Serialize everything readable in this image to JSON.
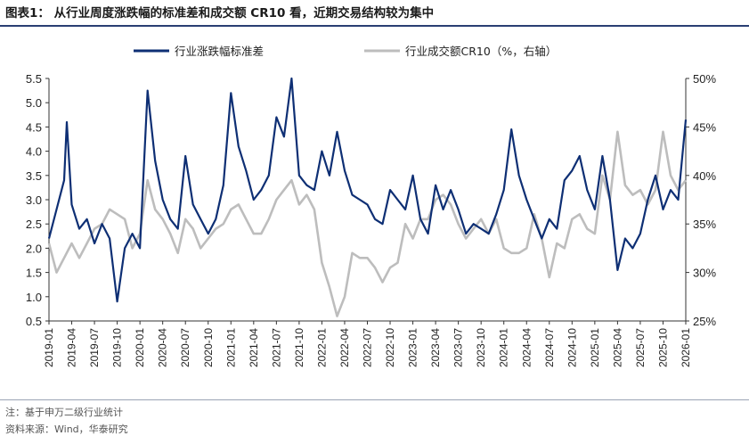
{
  "title": "图表1：  从行业周度涨跌幅的标准差和成交额 CR10 看，近期交易结构较为集中",
  "footer": {
    "note": "注：基于申万二级行业统计",
    "source": "资料来源：Wind，华泰研究"
  },
  "colors": {
    "series1": "#0e2f74",
    "series2": "#bdbdbd",
    "axis": "#333333",
    "rule": "#2a3f73"
  },
  "chart_data": {
    "type": "line",
    "title": "",
    "xlabel": "",
    "ylabel": "",
    "legend_position": "top-center",
    "grid": false,
    "x_ticks": [
      "2019-01",
      "2019-04",
      "2019-07",
      "2019-10",
      "2020-01",
      "2020-04",
      "2020-07",
      "2020-10",
      "2021-01",
      "2021-04",
      "2021-07",
      "2021-10",
      "2022-01",
      "2022-04",
      "2022-07",
      "2022-10",
      "2023-01",
      "2023-04",
      "2023-07",
      "2023-10",
      "2024-01",
      "2024-04",
      "2024-07",
      "2024-10",
      "2025-01",
      "2025-04",
      "2025-07",
      "2025-10",
      "2026-01"
    ],
    "left_axis": {
      "ylim": [
        0.5,
        5.5
      ],
      "ticks": [
        "0.5",
        "1.0",
        "1.5",
        "2.0",
        "2.5",
        "3.0",
        "3.5",
        "4.0",
        "4.5",
        "5.0",
        "5.5"
      ]
    },
    "right_axis": {
      "ylim": [
        25,
        50
      ],
      "ticks": [
        "25%",
        "30%",
        "35%",
        "40%",
        "45%",
        "50%"
      ]
    },
    "series": [
      {
        "name": "行业涨跌幅标准差",
        "axis": "left",
        "points": [
          [
            "2019-01",
            2.2
          ],
          [
            "2019-02",
            2.8
          ],
          [
            "2019-03",
            3.4
          ],
          [
            "2019-03",
            4.6
          ],
          [
            "2019-04",
            2.9
          ],
          [
            "2019-05",
            2.4
          ],
          [
            "2019-06",
            2.6
          ],
          [
            "2019-07",
            2.1
          ],
          [
            "2019-08",
            2.5
          ],
          [
            "2019-09",
            2.2
          ],
          [
            "2019-10",
            0.9
          ],
          [
            "2019-11",
            2.0
          ],
          [
            "2019-12",
            2.3
          ],
          [
            "2020-01",
            2.0
          ],
          [
            "2020-02",
            5.25
          ],
          [
            "2020-03",
            3.8
          ],
          [
            "2020-04",
            3.0
          ],
          [
            "2020-05",
            2.6
          ],
          [
            "2020-06",
            2.4
          ],
          [
            "2020-07",
            3.9
          ],
          [
            "2020-08",
            2.9
          ],
          [
            "2020-09",
            2.6
          ],
          [
            "2020-10",
            2.3
          ],
          [
            "2020-11",
            2.6
          ],
          [
            "2020-12",
            3.3
          ],
          [
            "2021-01",
            5.2
          ],
          [
            "2021-02",
            4.1
          ],
          [
            "2021-03",
            3.6
          ],
          [
            "2021-04",
            3.0
          ],
          [
            "2021-05",
            3.2
          ],
          [
            "2021-06",
            3.5
          ],
          [
            "2021-07",
            4.7
          ],
          [
            "2021-08",
            4.3
          ],
          [
            "2021-09",
            5.5
          ],
          [
            "2021-10",
            3.5
          ],
          [
            "2021-11",
            3.3
          ],
          [
            "2021-12",
            3.2
          ],
          [
            "2022-01",
            4.0
          ],
          [
            "2022-02",
            3.5
          ],
          [
            "2022-03",
            4.4
          ],
          [
            "2022-04",
            3.6
          ],
          [
            "2022-05",
            3.1
          ],
          [
            "2022-06",
            3.0
          ],
          [
            "2022-07",
            2.9
          ],
          [
            "2022-08",
            2.6
          ],
          [
            "2022-09",
            2.5
          ],
          [
            "2022-10",
            3.2
          ],
          [
            "2022-11",
            3.0
          ],
          [
            "2022-12",
            2.8
          ],
          [
            "2023-01",
            3.5
          ],
          [
            "2023-02",
            2.6
          ],
          [
            "2023-03",
            2.3
          ],
          [
            "2023-04",
            3.3
          ],
          [
            "2023-05",
            2.8
          ],
          [
            "2023-06",
            3.2
          ],
          [
            "2023-07",
            2.8
          ],
          [
            "2023-08",
            2.3
          ],
          [
            "2023-09",
            2.5
          ],
          [
            "2023-10",
            2.4
          ],
          [
            "2023-11",
            2.3
          ],
          [
            "2023-12",
            2.7
          ],
          [
            "2024-01",
            3.2
          ],
          [
            "2024-02",
            4.45
          ],
          [
            "2024-03",
            3.5
          ],
          [
            "2024-04",
            3.0
          ],
          [
            "2024-05",
            2.6
          ],
          [
            "2024-06",
            2.2
          ],
          [
            "2024-07",
            2.6
          ],
          [
            "2024-08",
            2.4
          ],
          [
            "2024-09",
            3.4
          ],
          [
            "2024-10",
            3.6
          ],
          [
            "2024-11",
            3.9
          ],
          [
            "2024-12",
            3.2
          ],
          [
            "2025-01",
            2.8
          ],
          [
            "2025-02",
            3.9
          ],
          [
            "2025-03",
            3.0
          ],
          [
            "2025-04",
            1.55
          ],
          [
            "2025-05",
            2.2
          ],
          [
            "2025-06",
            2.0
          ],
          [
            "2025-07",
            2.3
          ],
          [
            "2025-08",
            3.0
          ],
          [
            "2025-09",
            3.5
          ],
          [
            "2025-10",
            2.8
          ],
          [
            "2025-11",
            3.2
          ],
          [
            "2025-12",
            3.0
          ],
          [
            "2026-01",
            4.65
          ]
        ]
      },
      {
        "name": "行业成交额CR10（%，右轴）",
        "axis": "right",
        "points": [
          [
            "2019-01",
            33.0
          ],
          [
            "2019-02",
            30.0
          ],
          [
            "2019-03",
            31.5
          ],
          [
            "2019-04",
            33.0
          ],
          [
            "2019-05",
            31.5
          ],
          [
            "2019-06",
            33.0
          ],
          [
            "2019-07",
            34.5
          ],
          [
            "2019-08",
            35.0
          ],
          [
            "2019-09",
            36.5
          ],
          [
            "2019-10",
            36.0
          ],
          [
            "2019-11",
            35.5
          ],
          [
            "2019-12",
            32.5
          ],
          [
            "2020-01",
            34.0
          ],
          [
            "2020-02",
            39.5
          ],
          [
            "2020-03",
            36.5
          ],
          [
            "2020-04",
            35.5
          ],
          [
            "2020-05",
            34.0
          ],
          [
            "2020-06",
            32.0
          ],
          [
            "2020-07",
            35.5
          ],
          [
            "2020-08",
            34.5
          ],
          [
            "2020-09",
            32.5
          ],
          [
            "2020-10",
            33.5
          ],
          [
            "2020-11",
            34.5
          ],
          [
            "2020-12",
            35.0
          ],
          [
            "2021-01",
            36.5
          ],
          [
            "2021-02",
            37.0
          ],
          [
            "2021-03",
            35.5
          ],
          [
            "2021-04",
            34.0
          ],
          [
            "2021-05",
            34.0
          ],
          [
            "2021-06",
            35.5
          ],
          [
            "2021-07",
            37.5
          ],
          [
            "2021-08",
            38.5
          ],
          [
            "2021-09",
            39.5
          ],
          [
            "2021-10",
            37.0
          ],
          [
            "2021-11",
            38.0
          ],
          [
            "2021-12",
            36.5
          ],
          [
            "2022-01",
            31.0
          ],
          [
            "2022-02",
            28.5
          ],
          [
            "2022-03",
            25.5
          ],
          [
            "2022-04",
            27.5
          ],
          [
            "2022-05",
            32.0
          ],
          [
            "2022-06",
            31.5
          ],
          [
            "2022-07",
            31.5
          ],
          [
            "2022-08",
            30.5
          ],
          [
            "2022-09",
            29.0
          ],
          [
            "2022-10",
            30.5
          ],
          [
            "2022-11",
            31.0
          ],
          [
            "2022-12",
            35.0
          ],
          [
            "2023-01",
            33.5
          ],
          [
            "2023-02",
            35.5
          ],
          [
            "2023-03",
            35.5
          ],
          [
            "2023-04",
            37.5
          ],
          [
            "2023-05",
            38.0
          ],
          [
            "2023-06",
            37.0
          ],
          [
            "2023-07",
            35.0
          ],
          [
            "2023-08",
            33.5
          ],
          [
            "2023-09",
            34.5
          ],
          [
            "2023-10",
            35.5
          ],
          [
            "2023-11",
            34.0
          ],
          [
            "2023-12",
            35.5
          ],
          [
            "2024-01",
            32.5
          ],
          [
            "2024-02",
            32.0
          ],
          [
            "2024-03",
            32.0
          ],
          [
            "2024-04",
            32.5
          ],
          [
            "2024-05",
            36.0
          ],
          [
            "2024-06",
            33.5
          ],
          [
            "2024-07",
            29.5
          ],
          [
            "2024-08",
            33.0
          ],
          [
            "2024-09",
            32.5
          ],
          [
            "2024-10",
            35.5
          ],
          [
            "2024-11",
            36.0
          ],
          [
            "2024-12",
            34.5
          ],
          [
            "2025-01",
            34.0
          ],
          [
            "2025-02",
            40.0
          ],
          [
            "2025-03",
            37.5
          ],
          [
            "2025-04",
            44.5
          ],
          [
            "2025-05",
            39.0
          ],
          [
            "2025-06",
            38.0
          ],
          [
            "2025-07",
            38.5
          ],
          [
            "2025-08",
            37.0
          ],
          [
            "2025-09",
            38.5
          ],
          [
            "2025-10",
            44.5
          ],
          [
            "2025-11",
            40.0
          ],
          [
            "2025-12",
            38.5
          ],
          [
            "2026-01",
            39.5
          ]
        ]
      }
    ]
  }
}
